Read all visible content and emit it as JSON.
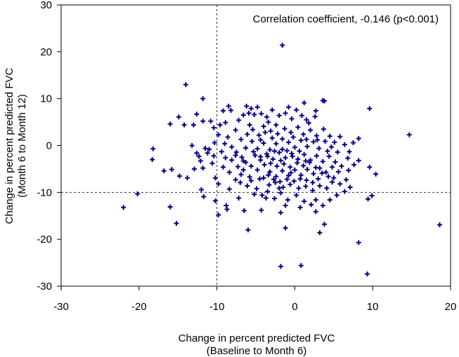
{
  "chart_data": {
    "type": "scatter",
    "annotation": "Correlation coefficient, -0.146 (p<0.001)",
    "xlabel": [
      "Change in percent predicted FVC",
      "(Baseline to Month 6)"
    ],
    "ylabel": [
      "Change in percent predicted FVC",
      "(Month 6 to Month 12)"
    ],
    "xlim": [
      -30,
      20
    ],
    "ylim": [
      -30,
      30
    ],
    "xticks": [
      -30,
      -20,
      -10,
      0,
      10,
      20
    ],
    "yticks": [
      -30,
      -20,
      -10,
      0,
      10,
      20,
      30
    ],
    "grid": false,
    "reference_lines": {
      "x": -10,
      "y": -10,
      "style": "dashed"
    },
    "marker": "plus",
    "marker_color": "#00008b",
    "points": [
      [
        -1.6,
        21.4
      ],
      [
        -14,
        13
      ],
      [
        -11.8,
        10
      ],
      [
        3.6,
        9.6
      ],
      [
        3.8,
        9.5
      ],
      [
        9.6,
        7.9
      ],
      [
        14.7,
        2.3
      ],
      [
        -22,
        -13.2
      ],
      [
        -20.2,
        -10.3
      ],
      [
        -16,
        -13.1
      ],
      [
        -15.2,
        -16.6
      ],
      [
        18.6,
        -16.9
      ],
      [
        -1.8,
        -25.8
      ],
      [
        0.8,
        -25.6
      ],
      [
        9.3,
        -27.4
      ],
      [
        8.2,
        -20.7
      ],
      [
        3.8,
        -16.8
      ],
      [
        3.2,
        -18.6
      ],
      [
        -6,
        -18
      ],
      [
        -1.2,
        -17.6
      ],
      [
        -1.8,
        -14.3
      ],
      [
        -4.3,
        -13.8
      ],
      [
        -6.5,
        -13.9
      ],
      [
        -8.7,
        -13.6
      ],
      [
        -8.8,
        -12.8
      ],
      [
        -9.8,
        -14.8
      ],
      [
        -10.2,
        -11.8
      ],
      [
        9.4,
        -11.4
      ],
      [
        9.9,
        -10.7
      ],
      [
        10.4,
        -6.1
      ],
      [
        9.6,
        -4.6
      ],
      [
        8.2,
        -3.2
      ],
      [
        8.2,
        1.5
      ],
      [
        -18.2,
        -0.7
      ],
      [
        -18.3,
        -3
      ],
      [
        -16.8,
        -5.4
      ],
      [
        -15.8,
        -5.1
      ],
      [
        -16,
        4.6
      ],
      [
        -14.9,
        6.1
      ],
      [
        -14.2,
        4.4
      ],
      [
        -13,
        4.4
      ],
      [
        -12.6,
        6.7
      ],
      [
        -11.8,
        5.2
      ],
      [
        -10.8,
        5.2
      ],
      [
        -10.4,
        3.8
      ],
      [
        -14.8,
        -6.5
      ],
      [
        -13.2,
        0
      ],
      [
        -12.6,
        -1.6
      ],
      [
        -12.1,
        -3.3
      ],
      [
        -11.8,
        -4.8
      ],
      [
        -10.2,
        -6.9
      ],
      [
        -9.8,
        -8.2
      ],
      [
        -9.6,
        4.4
      ],
      [
        -9.2,
        7.4
      ],
      [
        -8.5,
        8.4
      ],
      [
        -8.2,
        7.5
      ],
      [
        -7.2,
        5.4
      ],
      [
        -6.6,
        6.5
      ],
      [
        -6.2,
        8.4
      ],
      [
        -5.6,
        7.9
      ],
      [
        -5.2,
        6.6
      ],
      [
        -4.8,
        8.2
      ],
      [
        -4.3,
        6.8
      ],
      [
        -3.6,
        6.1
      ],
      [
        -2.9,
        7.6
      ],
      [
        -2,
        6.4
      ],
      [
        -1.2,
        6.9
      ],
      [
        -0.8,
        8.2
      ],
      [
        0.2,
        7.6
      ],
      [
        0.9,
        6.4
      ],
      [
        1.5,
        5.5
      ],
      [
        2.6,
        6.2
      ],
      [
        -3.4,
        5
      ],
      [
        -2.4,
        4.4
      ],
      [
        -0.4,
        5.7
      ],
      [
        1.8,
        4.8
      ],
      [
        -5.8,
        4.4
      ],
      [
        -8.9,
        4.9
      ],
      [
        -7.6,
        3.3
      ],
      [
        -9.8,
        2.3
      ],
      [
        -8.6,
        1.8
      ],
      [
        -9,
        0.4
      ],
      [
        -8.1,
        -0.3
      ],
      [
        -11.2,
        -1.6
      ],
      [
        -11.5,
        -0.6
      ],
      [
        -10.4,
        -2.2
      ],
      [
        -12.3,
        -2.3
      ],
      [
        -10.6,
        -3.8
      ],
      [
        -9.2,
        -4.6
      ],
      [
        -8.4,
        -5.7
      ],
      [
        -7.6,
        -7.3
      ],
      [
        -6.9,
        -6.2
      ],
      [
        -6.1,
        -8.6
      ],
      [
        -5.6,
        -7.5
      ],
      [
        -4.9,
        -9.2
      ],
      [
        -4.2,
        -10.6
      ],
      [
        -3.5,
        -9.8
      ],
      [
        -2.6,
        -11.3
      ],
      [
        -1.8,
        -10.1
      ],
      [
        -0.9,
        -11.6
      ],
      [
        0.2,
        -10.6
      ],
      [
        1.2,
        -11.9
      ],
      [
        2.1,
        -12.6
      ],
      [
        2.7,
        -11.6
      ],
      [
        3.6,
        -12.8
      ],
      [
        4.5,
        -11.6
      ],
      [
        5.4,
        -10.6
      ],
      [
        6.4,
        -9.8
      ],
      [
        7.1,
        -8.9
      ],
      [
        6.6,
        -7.3
      ],
      [
        5.8,
        -8.2
      ],
      [
        4.8,
        -7.8
      ],
      [
        4.1,
        -9.1
      ],
      [
        3.2,
        -8.6
      ],
      [
        2.3,
        -9.6
      ],
      [
        1.4,
        -8.7
      ],
      [
        0.5,
        -9.1
      ],
      [
        -0.6,
        -8.3
      ],
      [
        -1.5,
        -8.9
      ],
      [
        -2.5,
        -7.9
      ],
      [
        -3.3,
        -8.4
      ],
      [
        -4.5,
        -7.1
      ],
      [
        -5.8,
        -6.7
      ],
      [
        -6.6,
        -5.2
      ],
      [
        -7.3,
        -4.5
      ],
      [
        -8.1,
        -3.1
      ],
      [
        -7.5,
        -1.4
      ],
      [
        -6.8,
        -2.5
      ],
      [
        -6.3,
        -0.5
      ],
      [
        -6.9,
        1.3
      ],
      [
        -6.1,
        2.4
      ],
      [
        -5.4,
        3.4
      ],
      [
        -4.6,
        2.2
      ],
      [
        -4,
        4.1
      ],
      [
        -3.1,
        3.1
      ],
      [
        -2.2,
        2.5
      ],
      [
        -1.3,
        3.6
      ],
      [
        -0.5,
        2.8
      ],
      [
        0.4,
        3.9
      ],
      [
        1.1,
        2.4
      ],
      [
        2,
        3.3
      ],
      [
        2.8,
        2.1
      ],
      [
        3.7,
        3.5
      ],
      [
        4.5,
        2
      ],
      [
        5.1,
        0.7
      ],
      [
        5.8,
        1.9
      ],
      [
        6.4,
        0.2
      ],
      [
        7,
        -1.3
      ],
      [
        7.5,
        0.6
      ],
      [
        6.8,
        -2.7
      ],
      [
        5.5,
        -1.4
      ],
      [
        4.7,
        -0.3
      ],
      [
        3.9,
        0.9
      ],
      [
        3.1,
        -0.6
      ],
      [
        2.4,
        0.8
      ],
      [
        1.6,
        -0.2
      ],
      [
        0.8,
        1.1
      ],
      [
        0,
        -0.4
      ],
      [
        -0.8,
        0.7
      ],
      [
        -1.6,
        -0.8
      ],
      [
        -2.4,
        0.4
      ],
      [
        -3.2,
        -0.9
      ],
      [
        -4,
        0.5
      ],
      [
        -4.8,
        -0.7
      ],
      [
        -5.5,
        0.9
      ],
      [
        -5.1,
        -2.1
      ],
      [
        -4.4,
        -3.1
      ],
      [
        -3.6,
        -1.8
      ],
      [
        -2.8,
        -2.9
      ],
      [
        -2,
        -1.5
      ],
      [
        -1.2,
        -2.6
      ],
      [
        -0.4,
        -1.7
      ],
      [
        0.4,
        -2.9
      ],
      [
        1.2,
        -1.9
      ],
      [
        2,
        -3.1
      ],
      [
        2.8,
        -2.2
      ],
      [
        3.6,
        -3.4
      ],
      [
        4.4,
        -2.3
      ],
      [
        5.2,
        -3.5
      ],
      [
        6,
        -4.4
      ],
      [
        6.9,
        -5.3
      ],
      [
        7.6,
        -4.1
      ],
      [
        5.6,
        -5.6
      ],
      [
        4.8,
        -4.6
      ],
      [
        4,
        -5.7
      ],
      [
        3.2,
        -4.8
      ],
      [
        2.4,
        -6
      ],
      [
        1.6,
        -5.1
      ],
      [
        0.8,
        -6.3
      ],
      [
        0,
        -5.2
      ],
      [
        -0.8,
        -6.4
      ],
      [
        -1.6,
        -5.4
      ],
      [
        -2.4,
        -6.6
      ],
      [
        -3.2,
        -5.6
      ],
      [
        -4,
        -6.9
      ],
      [
        -4.8,
        -5.2
      ],
      [
        -5.6,
        -4.4
      ],
      [
        -6.3,
        -3.6
      ],
      [
        -7,
        -7.9
      ],
      [
        -3.9,
        -4.1
      ],
      [
        -3.1,
        -3.8
      ],
      [
        -2.3,
        -4.4
      ],
      [
        -1.4,
        -3.9
      ],
      [
        -0.6,
        -4.6
      ],
      [
        0.3,
        -3.7
      ],
      [
        1.1,
        -4.3
      ],
      [
        1.9,
        -3.6
      ],
      [
        2.7,
        -4.7
      ],
      [
        3.5,
        -5.9
      ],
      [
        4.3,
        -6.6
      ],
      [
        5,
        -6.9
      ],
      [
        0.7,
        -7.1
      ],
      [
        -0.1,
        -7.6
      ],
      [
        -1,
        -7.2
      ],
      [
        -1.9,
        -7.7
      ],
      [
        -2.7,
        -7.2
      ],
      [
        -3.4,
        -6.3
      ],
      [
        1.5,
        -7.4
      ],
      [
        2.3,
        -7.9
      ],
      [
        3,
        -7.1
      ],
      [
        -0.3,
        -2.3
      ],
      [
        -1.8,
        -3.2
      ],
      [
        -2.6,
        -1.2
      ],
      [
        -3.5,
        -2.3
      ],
      [
        -1,
        -1.1
      ],
      [
        0.6,
        -1.2
      ],
      [
        1.4,
        -3.3
      ],
      [
        -0.2,
        1.8
      ],
      [
        -1.6,
        1.4
      ],
      [
        -2.9,
        1.6
      ],
      [
        -3.8,
        2.8
      ],
      [
        1.5,
        1.3
      ],
      [
        2.9,
        1.2
      ],
      [
        4.2,
        -1.2
      ],
      [
        -4.4,
        -2.4
      ],
      [
        -5.3,
        -1.3
      ],
      [
        -6.6,
        -3.3
      ],
      [
        -7.6,
        -2.1
      ],
      [
        -2,
        -9.1
      ],
      [
        -3.7,
        -11.2
      ],
      [
        -5.2,
        -10.4
      ],
      [
        -1.2,
        -12.8
      ],
      [
        0.7,
        -13.2
      ],
      [
        2.7,
        -14.1
      ],
      [
        -7.2,
        -11.2
      ],
      [
        -8.4,
        -9.3
      ],
      [
        -0.5,
        -5.8
      ],
      [
        -4.4,
        1.2
      ],
      [
        -5.9,
        6.9
      ],
      [
        2.7,
        7.4
      ],
      [
        1.2,
        9.1
      ],
      [
        -10.3,
        0.6
      ],
      [
        -11,
        -0.8
      ],
      [
        -12.9,
        -5
      ],
      [
        -13.8,
        -6.9
      ],
      [
        -12,
        -9.4
      ],
      [
        -11.7,
        -10.9
      ],
      [
        -8.9,
        -2.6
      ],
      [
        -9.4,
        -1.3
      ]
    ]
  }
}
